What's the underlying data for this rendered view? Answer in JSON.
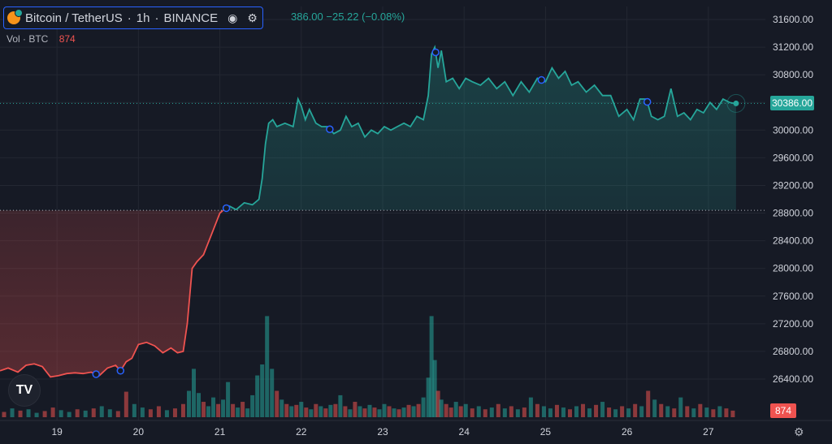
{
  "legend": {
    "symbol": "Bitcoin / TetherUS",
    "interval": "1h",
    "exchange": "BINANCE",
    "ohlc_text": "386.00 −25.22 (−0.08%)",
    "volume_label": "Vol · BTC",
    "volume_value": "874"
  },
  "price_tag": "30386.00",
  "volume_tag": "874",
  "logo_text": "TV",
  "colors": {
    "up": "#26a69a",
    "down": "#ef5350",
    "background": "#161a25",
    "grid": "#232732",
    "text": "#d1d4dc",
    "marker": "#2962ff"
  },
  "icons": {
    "visibility": "eye-icon",
    "settings": "gear-icon",
    "axis_settings": "gear-icon"
  },
  "chart_data": {
    "type": "area",
    "title": "",
    "grid": true,
    "x_range": [
      18.3,
      27.7
    ],
    "ylim": [
      26000,
      31800
    ],
    "y_ticks": [
      26400,
      26800,
      27200,
      27600,
      28000,
      28400,
      28800,
      29200,
      29600,
      30000,
      30400,
      30800,
      31200,
      31600
    ],
    "y_tick_labels": [
      "26400.00",
      "26800.00",
      "27200.00",
      "27600.00",
      "28000.00",
      "28400.00",
      "28800.00",
      "29200.00",
      "29600.00",
      "30000.00",
      "30400.00",
      "30800.00",
      "31200.00",
      "31600.00"
    ],
    "x_ticks": [
      19,
      20,
      21,
      22,
      23,
      24,
      25,
      26,
      27
    ],
    "x_tick_labels": [
      "19",
      "20",
      "21",
      "22",
      "23",
      "24",
      "25",
      "26",
      "27"
    ],
    "baseline_price": 28840,
    "last_price": 30386,
    "price": {
      "x": [
        18.3,
        18.4,
        18.52,
        18.62,
        18.72,
        18.82,
        18.92,
        19.02,
        19.12,
        19.22,
        19.32,
        19.42,
        19.52,
        19.62,
        19.72,
        19.78,
        19.85,
        19.92,
        20.0,
        20.1,
        20.2,
        20.3,
        20.4,
        20.48,
        20.55,
        20.6,
        20.66,
        20.72,
        20.8,
        20.9,
        21.0,
        21.05,
        21.12,
        21.2,
        21.3,
        21.4,
        21.48,
        21.52,
        21.56,
        21.6,
        21.65,
        21.7,
        21.8,
        21.9,
        21.96,
        22.0,
        22.05,
        22.1,
        22.18,
        22.25,
        22.32,
        22.4,
        22.48,
        22.55,
        22.62,
        22.7,
        22.78,
        22.86,
        22.94,
        23.02,
        23.1,
        23.18,
        23.26,
        23.34,
        23.42,
        23.5,
        23.56,
        23.6,
        23.64,
        23.68,
        23.72,
        23.78,
        23.86,
        23.94,
        24.02,
        24.1,
        24.2,
        24.3,
        24.4,
        24.5,
        24.6,
        24.7,
        24.8,
        24.9,
        25.0,
        25.08,
        25.16,
        25.24,
        25.32,
        25.4,
        25.5,
        25.6,
        25.7,
        25.8,
        25.9,
        26.0,
        26.08,
        26.16,
        26.24,
        26.3,
        26.38,
        26.46,
        26.54,
        26.62,
        26.7,
        26.78,
        26.86,
        26.94,
        27.02,
        27.1,
        27.18,
        27.26,
        27.34
      ],
      "y": [
        26520,
        26560,
        26500,
        26600,
        26620,
        26580,
        26430,
        26450,
        26480,
        26490,
        26480,
        26500,
        26450,
        26560,
        26600,
        26520,
        26650,
        26700,
        26900,
        26930,
        26880,
        26780,
        26850,
        26780,
        26800,
        27200,
        28000,
        28100,
        28200,
        28500,
        28800,
        28850,
        28900,
        28850,
        28950,
        28920,
        29000,
        29300,
        29800,
        30100,
        30150,
        30050,
        30100,
        30050,
        30450,
        30350,
        30150,
        30300,
        30100,
        30050,
        30050,
        29950,
        30000,
        30200,
        30050,
        30100,
        29900,
        30000,
        29950,
        30050,
        30000,
        30050,
        30100,
        30050,
        30200,
        30150,
        30500,
        31100,
        31200,
        30900,
        31150,
        30700,
        30750,
        30600,
        30750,
        30700,
        30650,
        30750,
        30600,
        30700,
        30500,
        30700,
        30550,
        30750,
        30700,
        30900,
        30750,
        30850,
        30650,
        30700,
        30550,
        30650,
        30500,
        30500,
        30200,
        30300,
        30150,
        30450,
        30450,
        30200,
        30150,
        30200,
        30600,
        30200,
        30250,
        30150,
        30300,
        30250,
        30400,
        30300,
        30450,
        30400,
        30380
      ],
      "markers_x": [
        19.48,
        19.78,
        21.08,
        22.35,
        23.65,
        24.95,
        26.25
      ]
    },
    "volume": {
      "x": [
        18.35,
        18.45,
        18.55,
        18.65,
        18.75,
        18.85,
        18.95,
        19.05,
        19.15,
        19.25,
        19.35,
        19.45,
        19.55,
        19.65,
        19.75,
        19.85,
        19.95,
        20.05,
        20.15,
        20.25,
        20.35,
        20.45,
        20.55,
        20.62,
        20.68,
        20.74,
        20.8,
        20.86,
        20.92,
        20.98,
        21.04,
        21.1,
        21.16,
        21.22,
        21.28,
        21.34,
        21.4,
        21.46,
        21.52,
        21.58,
        21.64,
        21.7,
        21.76,
        21.82,
        21.88,
        21.94,
        22.0,
        22.06,
        22.12,
        22.18,
        22.24,
        22.3,
        22.36,
        22.42,
        22.48,
        22.54,
        22.6,
        22.66,
        22.72,
        22.78,
        22.84,
        22.9,
        22.96,
        23.02,
        23.08,
        23.14,
        23.2,
        23.26,
        23.32,
        23.38,
        23.44,
        23.5,
        23.56,
        23.6,
        23.64,
        23.68,
        23.72,
        23.78,
        23.84,
        23.9,
        23.96,
        24.02,
        24.1,
        24.18,
        24.26,
        24.34,
        24.42,
        24.5,
        24.58,
        24.66,
        24.74,
        24.82,
        24.9,
        24.98,
        25.06,
        25.14,
        25.22,
        25.3,
        25.38,
        25.46,
        25.54,
        25.62,
        25.7,
        25.78,
        25.86,
        25.94,
        26.02,
        26.1,
        26.18,
        26.26,
        26.34,
        26.42,
        26.5,
        26.58,
        26.66,
        26.74,
        26.82,
        26.9,
        26.98,
        27.06,
        27.14,
        27.22,
        27.3
      ],
      "v": [
        12,
        20,
        15,
        18,
        10,
        14,
        22,
        16,
        12,
        18,
        15,
        20,
        25,
        18,
        14,
        58,
        30,
        22,
        18,
        25,
        16,
        20,
        30,
        60,
        110,
        55,
        35,
        25,
        45,
        30,
        40,
        80,
        30,
        22,
        35,
        20,
        50,
        95,
        120,
        230,
        110,
        60,
        40,
        30,
        25,
        28,
        35,
        22,
        18,
        30,
        25,
        20,
        28,
        30,
        50,
        25,
        18,
        35,
        25,
        20,
        28,
        22,
        18,
        30,
        25,
        20,
        18,
        22,
        28,
        25,
        30,
        45,
        90,
        230,
        130,
        60,
        40,
        30,
        22,
        35,
        25,
        30,
        20,
        25,
        18,
        22,
        30,
        20,
        25,
        18,
        22,
        45,
        30,
        25,
        20,
        28,
        22,
        18,
        25,
        30,
        20,
        28,
        35,
        22,
        18,
        25,
        20,
        30,
        25,
        60,
        40,
        30,
        25,
        20,
        45,
        25,
        20,
        30,
        22,
        18,
        25,
        20,
        15
      ],
      "up": [
        false,
        true,
        false,
        true,
        true,
        false,
        false,
        true,
        true,
        false,
        true,
        false,
        true,
        true,
        false,
        false,
        true,
        true,
        false,
        false,
        true,
        false,
        false,
        true,
        true,
        true,
        false,
        true,
        true,
        false,
        true,
        true,
        false,
        true,
        false,
        true,
        true,
        true,
        true,
        true,
        true,
        false,
        true,
        false,
        true,
        false,
        true,
        false,
        true,
        false,
        true,
        false,
        true,
        false,
        true,
        false,
        true,
        false,
        true,
        false,
        true,
        false,
        true,
        true,
        false,
        true,
        false,
        true,
        false,
        true,
        false,
        true,
        true,
        true,
        true,
        false,
        true,
        false,
        false,
        true,
        false,
        true,
        false,
        true,
        false,
        true,
        false,
        true,
        false,
        true,
        false,
        true,
        false,
        true,
        true,
        false,
        true,
        false,
        true,
        false,
        true,
        false,
        true,
        false,
        true,
        false,
        true,
        false,
        true,
        false,
        true,
        false,
        true,
        false,
        true,
        false,
        true,
        false,
        true,
        false,
        true,
        false,
        false
      ]
    }
  }
}
